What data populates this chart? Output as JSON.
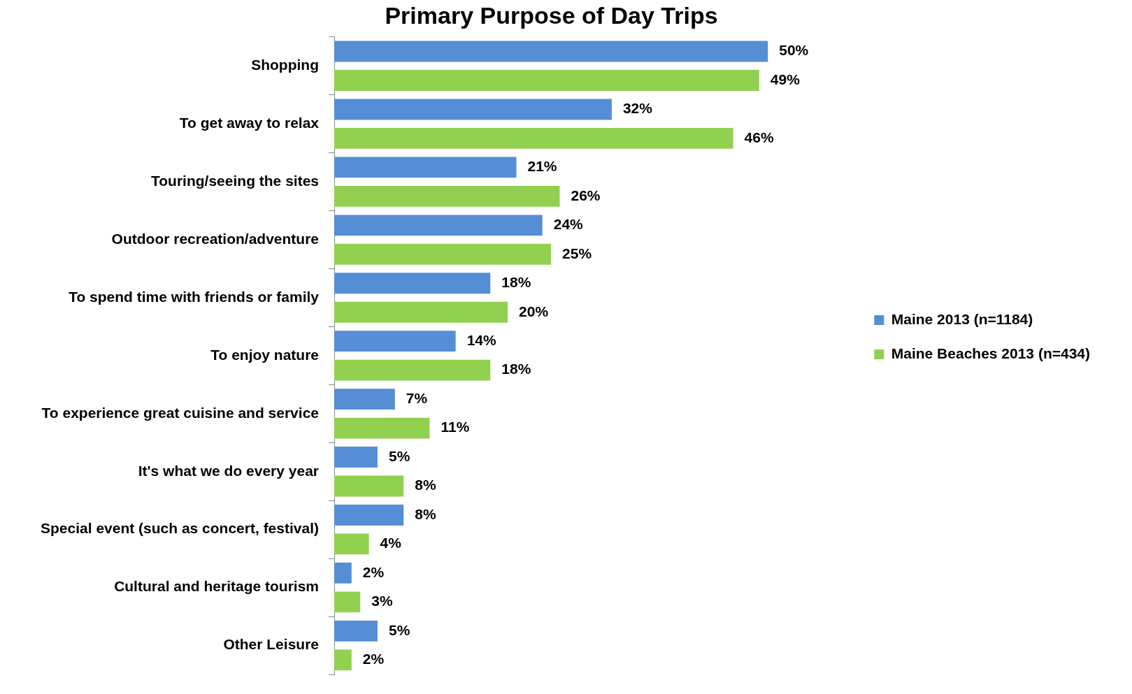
{
  "chart_data": {
    "type": "bar",
    "orientation": "horizontal",
    "title": "Primary Purpose of Day Trips",
    "categories": [
      "Shopping",
      "To get away to relax",
      "Touring/seeing the sites",
      "Outdoor recreation/adventure",
      "To spend time with friends or family",
      "To enjoy nature",
      "To experience great cuisine and service",
      "It's what we do every year",
      "Special event (such as concert, festival)",
      "Cultural and heritage tourism",
      "Other Leisure"
    ],
    "series": [
      {
        "name": "Maine 2013 (n=1184)",
        "color": "#558ed5",
        "values": [
          50,
          32,
          21,
          24,
          18,
          14,
          7,
          5,
          8,
          2,
          5
        ],
        "value_labels": [
          "50%",
          "32%",
          "21%",
          "24%",
          "18%",
          "14%",
          "7%",
          "5%",
          "8%",
          "2%",
          "5%"
        ]
      },
      {
        "name": "Maine Beaches 2013 (n=434)",
        "color": "#92d050",
        "values": [
          49,
          46,
          26,
          25,
          20,
          18,
          11,
          8,
          4,
          3,
          2
        ],
        "value_labels": [
          "49%",
          "46%",
          "26%",
          "25%",
          "20%",
          "18%",
          "11%",
          "8%",
          "4%",
          "3%",
          "2%"
        ]
      }
    ],
    "legend": "right",
    "tick_labels": "y"
  }
}
